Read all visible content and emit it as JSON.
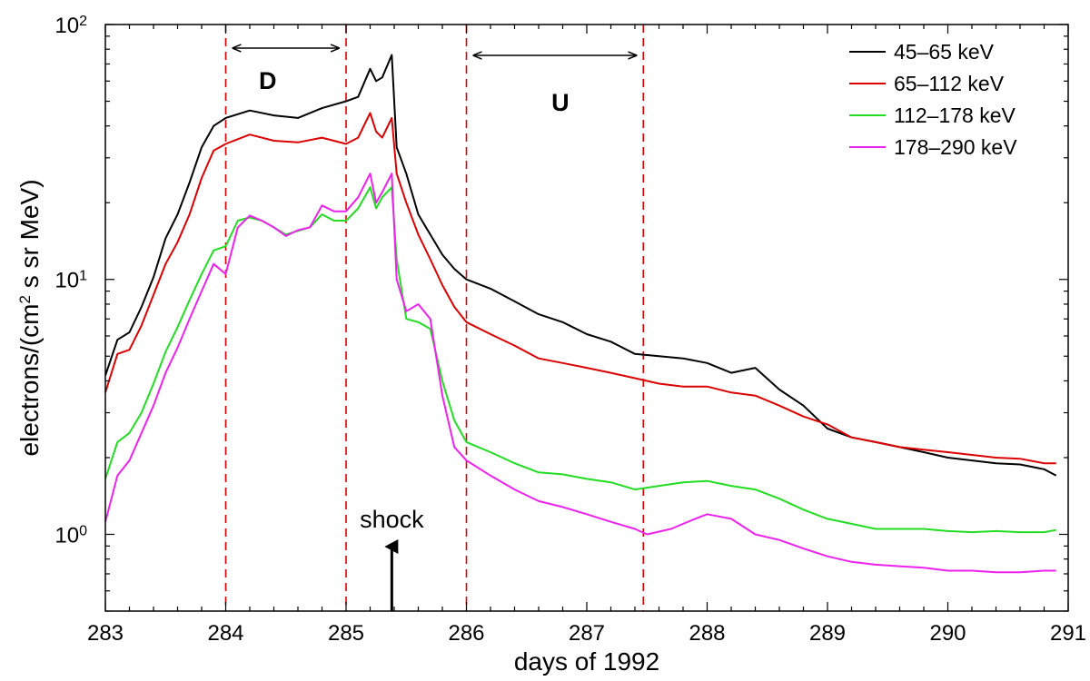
{
  "chart_data": {
    "type": "line",
    "title": "",
    "xlabel": "days of 1992",
    "ylabel_main": "electrons/(cm",
    "ylabel_sup": "2",
    "ylabel_tail": " s sr MeV)",
    "xlim": [
      283,
      291
    ],
    "ylim": [
      0.5,
      100
    ],
    "yscale": "log",
    "grid": false,
    "legend_position": "top-right",
    "x_ticks": [
      "283",
      "284",
      "285",
      "286",
      "287",
      "288",
      "289",
      "290",
      "291"
    ],
    "y_ticks": [
      {
        "base": "10",
        "exp": "0"
      },
      {
        "base": "10",
        "exp": "1"
      },
      {
        "base": "10",
        "exp": "2"
      }
    ],
    "series": [
      {
        "name": "45–65 keV",
        "color": "#000000",
        "points": [
          [
            283.0,
            4.2
          ],
          [
            283.1,
            5.8
          ],
          [
            283.2,
            6.2
          ],
          [
            283.3,
            7.8
          ],
          [
            283.4,
            10.2
          ],
          [
            283.5,
            14.5
          ],
          [
            283.6,
            18.0
          ],
          [
            283.7,
            24.0
          ],
          [
            283.8,
            33.0
          ],
          [
            283.9,
            40.0
          ],
          [
            284.0,
            43.0
          ],
          [
            284.2,
            46.0
          ],
          [
            284.4,
            44.0
          ],
          [
            284.6,
            43.0
          ],
          [
            284.8,
            47.0
          ],
          [
            285.0,
            50.0
          ],
          [
            285.1,
            52.0
          ],
          [
            285.2,
            67.0
          ],
          [
            285.25,
            60.0
          ],
          [
            285.3,
            62.0
          ],
          [
            285.38,
            76.0
          ],
          [
            285.42,
            33.0
          ],
          [
            285.5,
            26.0
          ],
          [
            285.6,
            18.0
          ],
          [
            285.7,
            15.0
          ],
          [
            285.8,
            12.5
          ],
          [
            285.9,
            11.0
          ],
          [
            286.0,
            10.0
          ],
          [
            286.2,
            9.2
          ],
          [
            286.4,
            8.2
          ],
          [
            286.6,
            7.3
          ],
          [
            286.8,
            6.8
          ],
          [
            287.0,
            6.1
          ],
          [
            287.2,
            5.7
          ],
          [
            287.4,
            5.1
          ],
          [
            287.6,
            5.0
          ],
          [
            287.8,
            4.9
          ],
          [
            288.0,
            4.7
          ],
          [
            288.2,
            4.3
          ],
          [
            288.4,
            4.5
          ],
          [
            288.6,
            3.7
          ],
          [
            288.8,
            3.2
          ],
          [
            289.0,
            2.6
          ],
          [
            289.2,
            2.4
          ],
          [
            289.4,
            2.3
          ],
          [
            289.6,
            2.2
          ],
          [
            289.8,
            2.1
          ],
          [
            290.0,
            2.0
          ],
          [
            290.2,
            1.95
          ],
          [
            290.4,
            1.9
          ],
          [
            290.6,
            1.88
          ],
          [
            290.8,
            1.8
          ],
          [
            290.9,
            1.7
          ]
        ]
      },
      {
        "name": "65–112 keV",
        "color": "#dd0000",
        "points": [
          [
            283.0,
            3.6
          ],
          [
            283.1,
            5.1
          ],
          [
            283.2,
            5.3
          ],
          [
            283.3,
            6.6
          ],
          [
            283.4,
            8.7
          ],
          [
            283.5,
            11.5
          ],
          [
            283.6,
            14.0
          ],
          [
            283.7,
            18.0
          ],
          [
            283.8,
            25.0
          ],
          [
            283.9,
            32.0
          ],
          [
            284.0,
            34.0
          ],
          [
            284.2,
            37.0
          ],
          [
            284.4,
            35.0
          ],
          [
            284.6,
            34.5
          ],
          [
            284.8,
            36.0
          ],
          [
            285.0,
            34.0
          ],
          [
            285.1,
            36.0
          ],
          [
            285.2,
            45.0
          ],
          [
            285.25,
            38.0
          ],
          [
            285.3,
            36.0
          ],
          [
            285.38,
            43.0
          ],
          [
            285.42,
            26.0
          ],
          [
            285.5,
            20.0
          ],
          [
            285.6,
            15.0
          ],
          [
            285.7,
            12.0
          ],
          [
            285.8,
            9.5
          ],
          [
            285.9,
            7.8
          ],
          [
            286.0,
            6.8
          ],
          [
            286.2,
            6.1
          ],
          [
            286.4,
            5.5
          ],
          [
            286.6,
            4.9
          ],
          [
            286.8,
            4.7
          ],
          [
            287.0,
            4.5
          ],
          [
            287.2,
            4.3
          ],
          [
            287.4,
            4.1
          ],
          [
            287.6,
            3.9
          ],
          [
            287.8,
            3.8
          ],
          [
            288.0,
            3.8
          ],
          [
            288.2,
            3.6
          ],
          [
            288.4,
            3.5
          ],
          [
            288.6,
            3.2
          ],
          [
            288.8,
            2.9
          ],
          [
            289.0,
            2.7
          ],
          [
            289.2,
            2.4
          ],
          [
            289.4,
            2.3
          ],
          [
            289.6,
            2.2
          ],
          [
            289.8,
            2.15
          ],
          [
            290.0,
            2.1
          ],
          [
            290.2,
            2.05
          ],
          [
            290.4,
            2.0
          ],
          [
            290.6,
            1.98
          ],
          [
            290.8,
            1.9
          ],
          [
            290.9,
            1.9
          ]
        ]
      },
      {
        "name": "112–178 keV",
        "color": "#22dd22",
        "points": [
          [
            283.0,
            1.65
          ],
          [
            283.1,
            2.3
          ],
          [
            283.2,
            2.5
          ],
          [
            283.3,
            3.0
          ],
          [
            283.4,
            3.9
          ],
          [
            283.5,
            5.2
          ],
          [
            283.6,
            6.5
          ],
          [
            283.7,
            8.3
          ],
          [
            283.8,
            10.5
          ],
          [
            283.9,
            13.0
          ],
          [
            284.0,
            13.5
          ],
          [
            284.1,
            17.0
          ],
          [
            284.2,
            17.5
          ],
          [
            284.3,
            17.0
          ],
          [
            284.4,
            16.0
          ],
          [
            284.5,
            15.0
          ],
          [
            284.6,
            15.5
          ],
          [
            284.7,
            16.0
          ],
          [
            284.8,
            18.0
          ],
          [
            284.9,
            17.0
          ],
          [
            285.0,
            17.0
          ],
          [
            285.1,
            19.0
          ],
          [
            285.2,
            23.0
          ],
          [
            285.25,
            19.0
          ],
          [
            285.3,
            21.0
          ],
          [
            285.38,
            23.0
          ],
          [
            285.42,
            12.0
          ],
          [
            285.5,
            7.0
          ],
          [
            285.6,
            6.8
          ],
          [
            285.7,
            6.4
          ],
          [
            285.8,
            4.0
          ],
          [
            285.9,
            2.8
          ],
          [
            286.0,
            2.3
          ],
          [
            286.2,
            2.1
          ],
          [
            286.4,
            1.9
          ],
          [
            286.6,
            1.75
          ],
          [
            286.8,
            1.72
          ],
          [
            287.0,
            1.65
          ],
          [
            287.2,
            1.6
          ],
          [
            287.4,
            1.5
          ],
          [
            287.6,
            1.55
          ],
          [
            287.8,
            1.6
          ],
          [
            288.0,
            1.62
          ],
          [
            288.2,
            1.55
          ],
          [
            288.4,
            1.5
          ],
          [
            288.6,
            1.38
          ],
          [
            288.8,
            1.25
          ],
          [
            289.0,
            1.15
          ],
          [
            289.2,
            1.1
          ],
          [
            289.4,
            1.05
          ],
          [
            289.6,
            1.05
          ],
          [
            289.8,
            1.05
          ],
          [
            290.0,
            1.03
          ],
          [
            290.2,
            1.02
          ],
          [
            290.4,
            1.03
          ],
          [
            290.6,
            1.02
          ],
          [
            290.8,
            1.02
          ],
          [
            290.9,
            1.04
          ]
        ]
      },
      {
        "name": "178–290 keV",
        "color": "#ee22ee",
        "points": [
          [
            283.0,
            1.12
          ],
          [
            283.1,
            1.7
          ],
          [
            283.2,
            1.95
          ],
          [
            283.3,
            2.5
          ],
          [
            283.4,
            3.2
          ],
          [
            283.5,
            4.3
          ],
          [
            283.6,
            5.4
          ],
          [
            283.7,
            7.0
          ],
          [
            283.8,
            9.0
          ],
          [
            283.9,
            11.5
          ],
          [
            284.0,
            10.5
          ],
          [
            284.1,
            16.0
          ],
          [
            284.2,
            17.8
          ],
          [
            284.3,
            17.0
          ],
          [
            284.4,
            16.0
          ],
          [
            284.5,
            14.8
          ],
          [
            284.6,
            15.6
          ],
          [
            284.7,
            16.0
          ],
          [
            284.8,
            19.5
          ],
          [
            284.9,
            18.5
          ],
          [
            285.0,
            18.5
          ],
          [
            285.1,
            21.0
          ],
          [
            285.2,
            26.0
          ],
          [
            285.25,
            20.0
          ],
          [
            285.3,
            22.0
          ],
          [
            285.38,
            26.0
          ],
          [
            285.42,
            10.0
          ],
          [
            285.5,
            7.5
          ],
          [
            285.6,
            8.0
          ],
          [
            285.7,
            7.0
          ],
          [
            285.8,
            3.5
          ],
          [
            285.9,
            2.2
          ],
          [
            286.0,
            1.95
          ],
          [
            286.2,
            1.7
          ],
          [
            286.4,
            1.5
          ],
          [
            286.6,
            1.35
          ],
          [
            286.8,
            1.28
          ],
          [
            287.0,
            1.2
          ],
          [
            287.2,
            1.12
          ],
          [
            287.4,
            1.05
          ],
          [
            287.5,
            1.0
          ],
          [
            287.7,
            1.05
          ],
          [
            287.9,
            1.15
          ],
          [
            288.0,
            1.2
          ],
          [
            288.2,
            1.15
          ],
          [
            288.4,
            1.0
          ],
          [
            288.6,
            0.95
          ],
          [
            288.8,
            0.88
          ],
          [
            289.0,
            0.82
          ],
          [
            289.2,
            0.78
          ],
          [
            289.4,
            0.76
          ],
          [
            289.6,
            0.75
          ],
          [
            289.8,
            0.74
          ],
          [
            290.0,
            0.72
          ],
          [
            290.2,
            0.72
          ],
          [
            290.4,
            0.71
          ],
          [
            290.6,
            0.71
          ],
          [
            290.8,
            0.72
          ],
          [
            290.9,
            0.72
          ]
        ]
      }
    ],
    "vertical_lines": [
      284.0,
      285.0,
      286.0,
      287.47
    ],
    "vertical_line_color": "#dd0000",
    "intervals": [
      {
        "label": "D",
        "from": 284.0,
        "to": 285.0
      },
      {
        "label": "U",
        "from": 286.0,
        "to": 287.47
      }
    ],
    "annotations": [
      {
        "text": "shock",
        "x": 285.38
      }
    ]
  }
}
